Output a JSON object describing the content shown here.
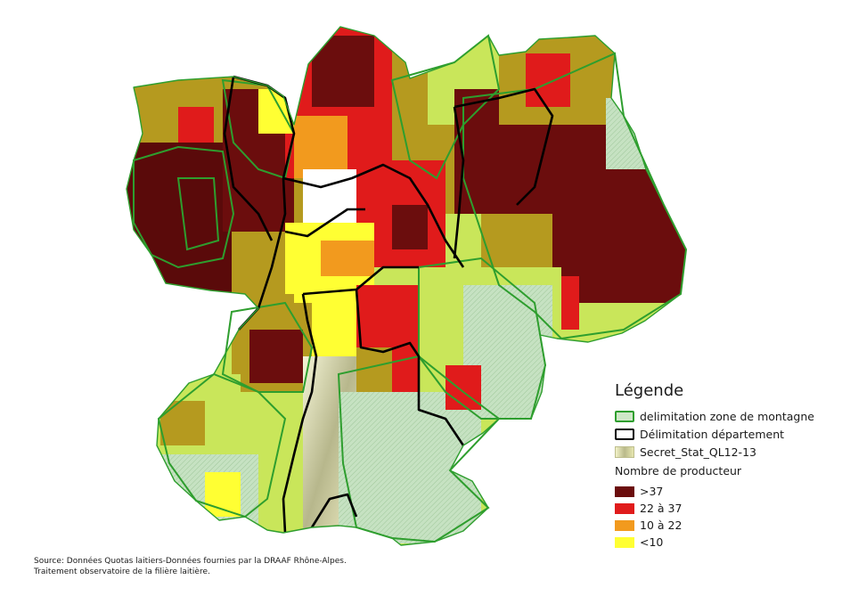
{
  "legend": {
    "title": "Légende",
    "montagne": "delimitation zone de montagne",
    "departement": "Délimitation département",
    "secret": "Secret_Stat_QL12-13",
    "subtitle": "Nombre de producteur",
    "classes": [
      {
        "label": ">37",
        "color": "#6b0d0d"
      },
      {
        "label": "22 à 37",
        "color": "#e01b1b"
      },
      {
        "label": "10 à 22",
        "color": "#f29a1e"
      },
      {
        "label": "<10",
        "color": "#ffff33"
      }
    ]
  },
  "colors": {
    "olive": "#b59a1f",
    "light_green": "#c9e65a",
    "montagne_fill": "#bfe0c0",
    "montagne_line": "#2e9e2e",
    "dept_line": "#000000"
  },
  "source": "Source: Données Quotas laitiers-Données fournies par la DRAAF Rhône-Alpes. Traitement observatoire de la filière laitière."
}
